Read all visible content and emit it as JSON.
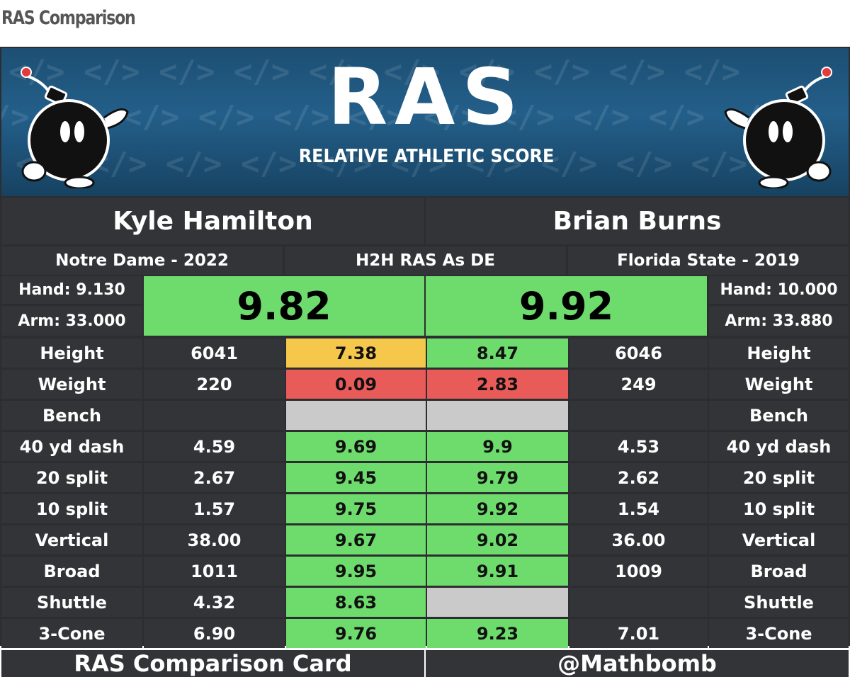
{
  "page_title": "RAS Comparison",
  "logo": {
    "main": "RAS",
    "subtitle": "RELATIVE ATHLETIC SCORE"
  },
  "players": {
    "left": {
      "name": "Kyle Hamilton",
      "school": "Notre Dame - 2022",
      "hand": "Hand: 9.130",
      "arm": "Arm: 33.000",
      "ras": "9.82"
    },
    "right": {
      "name": "Brian Burns",
      "school": "Florida State - 2019",
      "hand": "Hand: 10.000",
      "arm": "Arm: 33.880",
      "ras": "9.92"
    }
  },
  "center_header": "H2H RAS As DE",
  "metrics": [
    {
      "label": "Height",
      "left_value": "6041",
      "left_score": "7.38",
      "left_color": "yellow",
      "right_score": "8.47",
      "right_color": "green",
      "right_value": "6046"
    },
    {
      "label": "Weight",
      "left_value": "220",
      "left_score": "0.09",
      "left_color": "red",
      "right_score": "2.83",
      "right_color": "red",
      "right_value": "249"
    },
    {
      "label": "Bench",
      "left_value": "",
      "left_score": "",
      "left_color": "gray",
      "right_score": "",
      "right_color": "gray",
      "right_value": ""
    },
    {
      "label": "40 yd dash",
      "left_value": "4.59",
      "left_score": "9.69",
      "left_color": "green",
      "right_score": "9.9",
      "right_color": "green",
      "right_value": "4.53"
    },
    {
      "label": "20 split",
      "left_value": "2.67",
      "left_score": "9.45",
      "left_color": "green",
      "right_score": "9.79",
      "right_color": "green",
      "right_value": "2.62"
    },
    {
      "label": "10 split",
      "left_value": "1.57",
      "left_score": "9.75",
      "left_color": "green",
      "right_score": "9.92",
      "right_color": "green",
      "right_value": "1.54"
    },
    {
      "label": "Vertical",
      "left_value": "38.00",
      "left_score": "9.67",
      "left_color": "green",
      "right_score": "9.02",
      "right_color": "green",
      "right_value": "36.00"
    },
    {
      "label": "Broad",
      "left_value": "1011",
      "left_score": "9.95",
      "left_color": "green",
      "right_score": "9.91",
      "right_color": "green",
      "right_value": "1009"
    },
    {
      "label": "Shuttle",
      "left_value": "4.32",
      "left_score": "8.63",
      "left_color": "green",
      "right_score": "",
      "right_color": "gray",
      "right_value": ""
    },
    {
      "label": "3-Cone",
      "left_value": "6.90",
      "left_score": "9.76",
      "left_color": "green",
      "right_score": "9.23",
      "right_color": "green",
      "right_value": "7.01"
    }
  ],
  "footer": {
    "left": "RAS Comparison Card",
    "right": "@Mathbomb"
  },
  "colors": {
    "green": "#6edc6d",
    "yellow": "#f5c84b",
    "red": "#e85b58",
    "gray": "#cacaca",
    "dark": "#333437",
    "banner": "#235f8a"
  }
}
